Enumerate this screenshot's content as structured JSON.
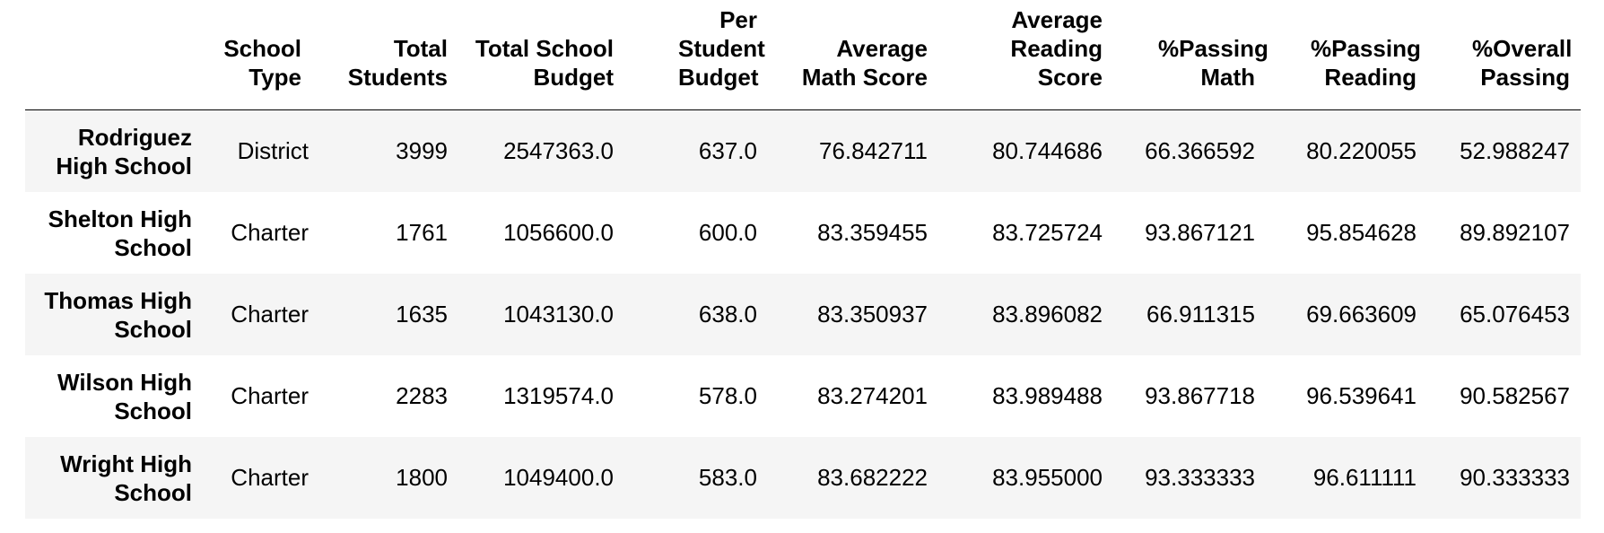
{
  "table": {
    "index_header": "",
    "columns": [
      "School Type",
      "Total Students",
      "Total School Budget",
      "Per Student Budget",
      "Average Math Score",
      "Average Reading Score",
      "%Passing Math",
      "%Passing Reading",
      "%Overall Passing"
    ],
    "rows": [
      {
        "index": "Rodriguez High School",
        "cells": [
          "District",
          "3999",
          "2547363.0",
          "637.0",
          "76.842711",
          "80.744686",
          "66.366592",
          "80.220055",
          "52.988247"
        ]
      },
      {
        "index": "Shelton High School",
        "cells": [
          "Charter",
          "1761",
          "1056600.0",
          "600.0",
          "83.359455",
          "83.725724",
          "93.867121",
          "95.854628",
          "89.892107"
        ]
      },
      {
        "index": "Thomas High School",
        "cells": [
          "Charter",
          "1635",
          "1043130.0",
          "638.0",
          "83.350937",
          "83.896082",
          "66.911315",
          "69.663609",
          "65.076453"
        ]
      },
      {
        "index": "Wilson High School",
        "cells": [
          "Charter",
          "2283",
          "1319574.0",
          "578.0",
          "83.274201",
          "83.989488",
          "93.867718",
          "96.539641",
          "90.582567"
        ]
      },
      {
        "index": "Wright High School",
        "cells": [
          "Charter",
          "1800",
          "1049400.0",
          "583.0",
          "83.682222",
          "83.955000",
          "93.333333",
          "96.611111",
          "90.333333"
        ]
      }
    ]
  }
}
